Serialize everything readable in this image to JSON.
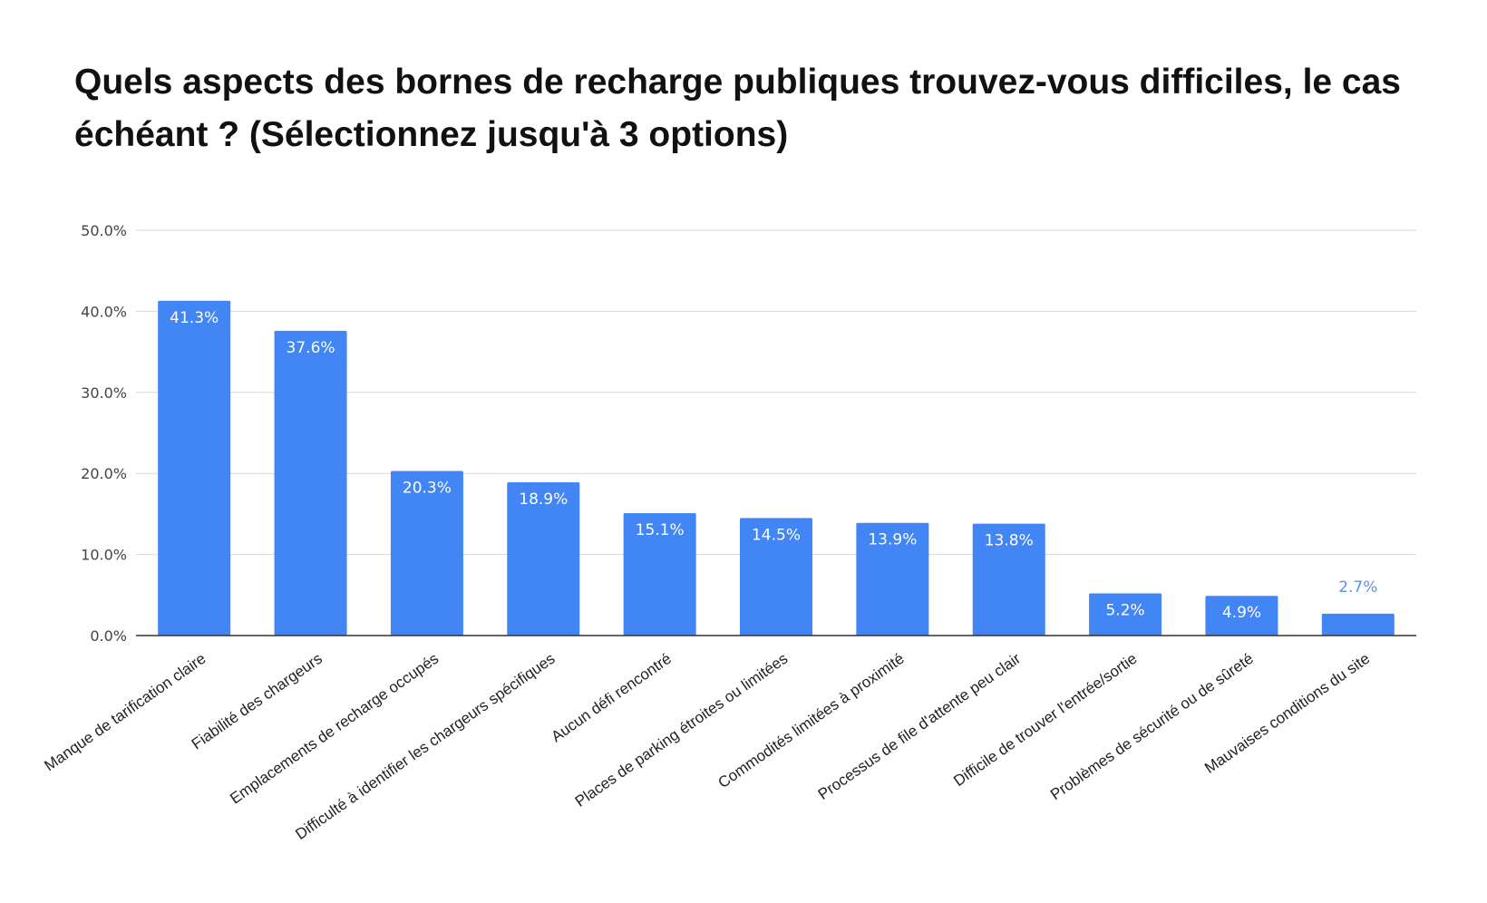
{
  "chart_data": {
    "type": "bar",
    "title": "Quels aspects des bornes de recharge publiques trouvez-vous difficiles, le cas échéant ? (Sélectionnez jusqu'à 3 options)",
    "xlabel": "",
    "ylabel": "",
    "ylim": [
      0,
      50
    ],
    "yticks": [
      "0.0%",
      "10.0%",
      "20.0%",
      "30.0%",
      "40.0%",
      "50.0%"
    ],
    "grid": true,
    "legend": "none",
    "bar_color": "#4285f4",
    "categories": [
      "Manque de tarification claire",
      "Fiabilité des chargeurs",
      "Emplacements de recharge occupés",
      "Difficulté à identifier les chargeurs spécifiques",
      "Aucun défi rencontré",
      "Places de parking étroites ou limitées",
      "Commodités limitées à proximité",
      "Processus de file d'attente peu clair",
      "Difficile de trouver l'entrée/sortie",
      "Problèmes de sécurité ou de sûreté",
      "Mauvaises conditions du site"
    ],
    "values": [
      41.3,
      37.6,
      20.3,
      18.9,
      15.1,
      14.5,
      13.9,
      13.8,
      5.2,
      4.9,
      2.7
    ],
    "data_labels": [
      "41.3%",
      "37.6%",
      "20.3%",
      "18.9%",
      "15.1%",
      "14.5%",
      "13.9%",
      "13.8%",
      "5.2%",
      "4.9%",
      "2.7%"
    ]
  }
}
